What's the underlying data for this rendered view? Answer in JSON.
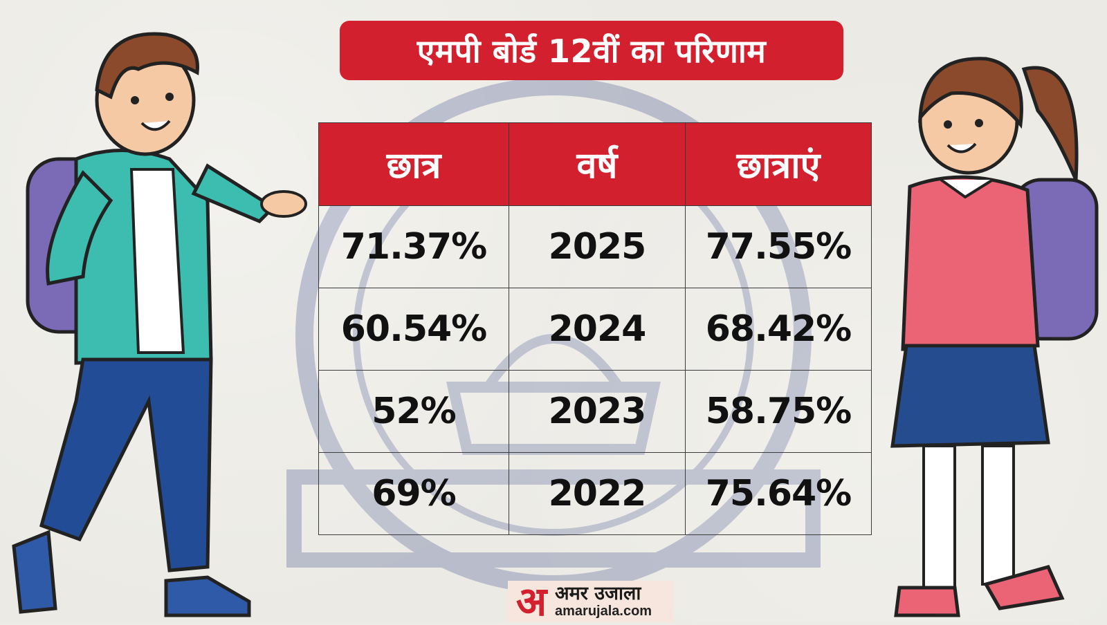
{
  "title": "एमपी बोर्ड 12वीं का परिणाम",
  "chart_data": {
    "type": "table",
    "columns": [
      "छात्र",
      "वर्ष",
      "छात्राएं"
    ],
    "rows": [
      [
        "71.37%",
        "2025",
        "77.55%"
      ],
      [
        "60.54%",
        "2024",
        "68.42%"
      ],
      [
        "52%",
        "2023",
        "58.75%"
      ],
      [
        "69%",
        "2022",
        "75.64%"
      ]
    ]
  },
  "logo": {
    "mark": "अ",
    "brand": "अमर उजाला",
    "domain": "amarujala.com"
  },
  "colors": {
    "accent": "#d3202e",
    "background": "#ebeae4",
    "text": "#111111"
  },
  "icons": {
    "seal": "madhya-pradesh-board-seal",
    "boy": "student-boy-illustration",
    "girl": "student-girl-illustration"
  }
}
